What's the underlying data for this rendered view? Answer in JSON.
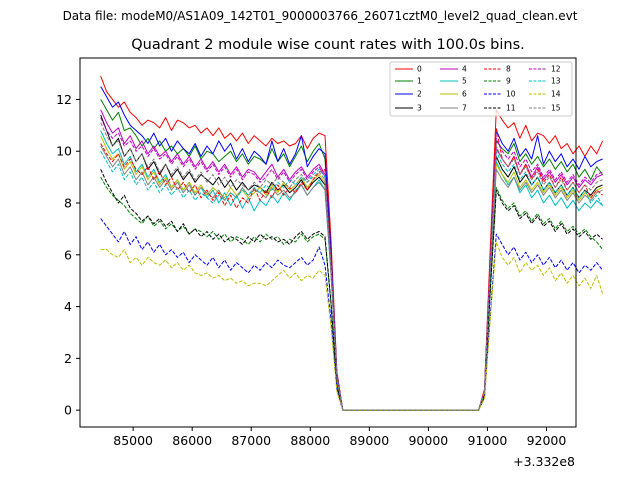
{
  "suptitle": "Data file: modeM0/AS1A09_142T01_9000003766_26071cztM0_level2_quad_clean.evt",
  "chart_data": {
    "type": "line",
    "title": "Quadrant 2 module wise count rates with 100.0s bins.",
    "xlabel": "",
    "ylabel": "",
    "x_offset_label": "+3.332e8",
    "xlim": [
      84100,
      92500
    ],
    "ylim": [
      -0.65,
      13.6
    ],
    "xticks": [
      85000,
      86000,
      87000,
      88000,
      89000,
      90000,
      91000,
      92000
    ],
    "xtick_labels": [
      "85000",
      "86000",
      "87000",
      "88000",
      "89000",
      "90000",
      "91000",
      "92000"
    ],
    "yticks": [
      0,
      2,
      4,
      6,
      8,
      10,
      12
    ],
    "ytick_labels": [
      "0",
      "2",
      "4",
      "6",
      "8",
      "10",
      "12"
    ],
    "x_start": 84450,
    "bin": 100,
    "gap_profile": [
      1.0,
      0.62,
      0.14,
      0.0,
      0.0,
      0.0,
      0.0,
      0.0,
      0.0,
      0.0,
      0.0,
      0.0,
      0.0,
      0.0,
      0.0,
      0.0,
      0.0,
      0.0,
      0.0,
      0.0,
      0.0,
      0.0,
      0.0,
      0.0,
      0.0,
      0.0,
      0.0,
      0.07,
      0.55,
      1.0
    ],
    "series": [
      {
        "name": "0",
        "color": "#ff0000",
        "dashed": false,
        "seg1": [
          12.9,
          12.3,
          12.0,
          11.7,
          11.9,
          11.5,
          11.3,
          11.0,
          11.2,
          11.1,
          10.9,
          11.3,
          10.8,
          11.2,
          11.1,
          10.9,
          11.0,
          10.7,
          10.9,
          10.6,
          10.9,
          10.5,
          10.7,
          10.4,
          10.7,
          10.3,
          10.6,
          10.4,
          10.2,
          10.5,
          10.3,
          10.4,
          10.2,
          10.3,
          10.6,
          10.1,
          10.5,
          10.7,
          10.6
        ],
        "seg2": [
          11.6,
          11.2,
          10.9,
          11.1,
          10.5,
          11.0,
          10.4,
          10.7,
          10.6,
          10.3,
          10.6,
          10.1,
          10.3,
          9.9,
          10.2,
          9.8,
          10.2,
          9.9,
          10.4
        ]
      },
      {
        "name": "1",
        "color": "#008000",
        "dashed": false,
        "seg1": [
          12.0,
          11.6,
          11.2,
          11.5,
          10.8,
          10.9,
          10.6,
          10.2,
          10.5,
          10.1,
          10.4,
          10.0,
          10.2,
          9.9,
          10.1,
          9.8,
          10.2,
          9.7,
          10.0,
          9.9,
          9.6,
          9.8,
          10.0,
          9.6,
          9.9,
          9.5,
          9.8,
          9.7,
          9.5,
          10.1,
          9.6,
          9.9,
          9.4,
          9.8,
          10.2,
          9.6,
          10.0,
          10.3,
          9.7
        ],
        "seg2": [
          10.4,
          10.1,
          9.9,
          10.3,
          9.6,
          9.9,
          9.5,
          9.8,
          9.4,
          9.7,
          9.3,
          9.6,
          9.2,
          9.5,
          9.0,
          9.3,
          8.9,
          9.4,
          9.1
        ]
      },
      {
        "name": "2",
        "color": "#0000ff",
        "dashed": false,
        "seg1": [
          12.5,
          12.1,
          11.7,
          11.9,
          11.4,
          11.0,
          10.8,
          10.6,
          10.3,
          10.7,
          10.2,
          10.5,
          10.0,
          10.4,
          10.1,
          9.9,
          10.3,
          9.8,
          10.2,
          9.9,
          10.4,
          10.0,
          10.3,
          9.7,
          10.1,
          9.6,
          10.0,
          9.8,
          9.5,
          10.4,
          9.6,
          10.1,
          9.5,
          9.9,
          10.6,
          9.4,
          9.8,
          10.1,
          9.9
        ],
        "seg2": [
          10.8,
          10.3,
          10.0,
          10.5,
          9.8,
          10.1,
          9.7,
          10.6,
          9.5,
          10.0,
          9.6,
          9.9,
          9.4,
          9.7,
          9.3,
          9.8,
          9.4,
          9.6,
          9.7
        ]
      },
      {
        "name": "3",
        "color": "#000000",
        "dashed": false,
        "seg1": [
          11.4,
          10.8,
          10.2,
          10.5,
          9.8,
          10.1,
          9.6,
          9.9,
          9.3,
          9.6,
          9.1,
          9.5,
          9.0,
          9.3,
          8.9,
          9.2,
          8.8,
          9.1,
          8.9,
          8.7,
          9.0,
          8.6,
          8.9,
          8.5,
          8.8,
          8.5,
          8.7,
          8.6,
          8.4,
          8.8,
          8.5,
          8.7,
          8.4,
          8.6,
          8.9,
          8.5,
          8.8,
          9.0,
          8.7
        ],
        "seg2": [
          9.8,
          9.3,
          9.0,
          9.4,
          8.8,
          9.1,
          8.7,
          9.0,
          8.5,
          8.8,
          8.4,
          8.7,
          8.3,
          8.6,
          8.2,
          8.5,
          8.3,
          8.6,
          8.7
        ]
      },
      {
        "name": "4",
        "color": "#bf00bf",
        "dashed": false,
        "seg1": [
          11.6,
          11.1,
          10.7,
          10.9,
          10.3,
          10.6,
          10.1,
          10.4,
          9.9,
          10.2,
          9.8,
          10.0,
          9.6,
          9.9,
          9.5,
          9.8,
          9.4,
          9.7,
          9.3,
          9.6,
          9.2,
          9.5,
          9.1,
          9.4,
          9.0,
          9.3,
          9.2,
          8.9,
          9.2,
          9.5,
          9.0,
          9.3,
          8.9,
          9.2,
          9.4,
          9.0,
          9.3,
          9.5,
          9.1
        ],
        "seg2": [
          10.1,
          9.7,
          9.4,
          9.8,
          9.1,
          9.5,
          9.0,
          9.4,
          8.9,
          9.2,
          8.8,
          9.1,
          8.7,
          9.0,
          8.6,
          8.9,
          8.7,
          9.0,
          9.1
        ]
      },
      {
        "name": "5",
        "color": "#00bfbf",
        "dashed": false,
        "seg1": [
          10.8,
          10.3,
          9.9,
          10.1,
          9.5,
          9.8,
          9.2,
          9.5,
          9.0,
          9.3,
          8.8,
          9.1,
          8.6,
          8.9,
          8.5,
          8.8,
          8.3,
          8.6,
          8.2,
          8.5,
          8.0,
          8.4,
          7.9,
          8.3,
          7.8,
          8.2,
          7.7,
          8.1,
          7.9,
          8.3,
          8.0,
          8.4,
          8.1,
          8.5,
          8.7,
          8.3,
          8.6,
          8.9,
          8.5
        ],
        "seg2": [
          9.6,
          9.1,
          8.7,
          9.0,
          8.4,
          8.7,
          8.2,
          8.5,
          8.0,
          8.3,
          7.9,
          8.2,
          7.8,
          8.1,
          7.7,
          8.0,
          7.8,
          8.1,
          7.9
        ]
      },
      {
        "name": "6",
        "color": "#bfbf00",
        "dashed": false,
        "seg1": [
          10.6,
          10.1,
          9.7,
          9.9,
          9.3,
          9.6,
          9.1,
          9.4,
          8.9,
          9.2,
          8.7,
          9.0,
          8.6,
          8.9,
          8.5,
          8.8,
          8.4,
          8.7,
          8.3,
          8.6,
          8.4,
          8.2,
          8.6,
          8.3,
          8.5,
          8.2,
          8.4,
          8.6,
          8.3,
          8.7,
          8.4,
          8.8,
          8.5,
          8.7,
          9.0,
          8.6,
          8.9,
          9.1,
          8.8
        ],
        "seg2": [
          9.5,
          9.1,
          8.8,
          9.2,
          8.6,
          8.9,
          8.5,
          8.8,
          8.4,
          8.7,
          8.3,
          8.6,
          8.2,
          8.5,
          8.1,
          8.4,
          8.2,
          8.5,
          8.6
        ]
      },
      {
        "name": "7",
        "color": "#808080",
        "dashed": false,
        "seg1": [
          10.2,
          9.8,
          9.4,
          9.7,
          9.1,
          9.4,
          8.9,
          9.2,
          8.7,
          9.0,
          8.6,
          8.9,
          8.5,
          8.8,
          8.4,
          8.7,
          8.3,
          8.6,
          8.4,
          8.2,
          8.5,
          8.1,
          8.4,
          8.2,
          8.6,
          8.3,
          8.5,
          8.4,
          8.2,
          8.6,
          8.3,
          8.5,
          8.2,
          8.4,
          8.7,
          8.3,
          8.6,
          8.8,
          8.5
        ],
        "seg2": [
          9.3,
          8.9,
          8.6,
          9.0,
          8.5,
          8.8,
          8.4,
          8.7,
          8.3,
          8.6,
          8.2,
          8.5,
          8.1,
          8.4,
          8.0,
          8.3,
          8.1,
          8.4,
          8.5
        ]
      },
      {
        "name": "8",
        "color": "#ff0000",
        "dashed": true,
        "seg1": [
          10.3,
          9.9,
          9.6,
          9.9,
          9.4,
          9.7,
          9.3,
          9.1,
          9.4,
          8.9,
          9.2,
          8.7,
          9.0,
          8.5,
          8.8,
          8.4,
          8.7,
          8.2,
          8.5,
          8.1,
          8.4,
          7.9,
          8.3,
          7.8,
          8.2,
          8.0,
          8.6,
          8.1,
          8.5,
          8.2,
          8.7,
          8.3,
          8.6,
          8.4,
          8.8,
          8.5,
          8.9,
          9.2,
          9.3
        ],
        "seg2": [
          10.9,
          9.7,
          9.4,
          9.8,
          9.1,
          9.5,
          8.9,
          9.3,
          8.8,
          9.1,
          8.6,
          9.0,
          8.5,
          8.8,
          8.4,
          8.7,
          8.2,
          8.5,
          8.3
        ]
      },
      {
        "name": "9",
        "color": "#008000",
        "dashed": true,
        "seg1": [
          9.0,
          8.6,
          8.3,
          8.1,
          7.9,
          7.6,
          7.4,
          7.2,
          7.5,
          7.1,
          7.3,
          7.0,
          7.2,
          6.9,
          7.1,
          6.8,
          7.0,
          6.9,
          6.7,
          6.9,
          6.6,
          6.8,
          6.5,
          6.7,
          6.6,
          6.4,
          6.7,
          6.5,
          6.8,
          6.6,
          6.7,
          6.4,
          6.6,
          6.5,
          6.8,
          6.5,
          6.7,
          6.8,
          6.6
        ],
        "seg2": [
          8.6,
          8.1,
          7.8,
          8.0,
          7.5,
          7.7,
          7.3,
          7.6,
          7.2,
          7.4,
          7.0,
          7.3,
          6.9,
          7.1,
          6.8,
          7.0,
          6.7,
          6.5,
          6.2
        ]
      },
      {
        "name": "10",
        "color": "#0000ff",
        "dashed": true,
        "seg1": [
          7.4,
          7.1,
          6.8,
          6.5,
          6.9,
          6.4,
          6.7,
          6.2,
          6.5,
          6.1,
          6.4,
          6.0,
          6.2,
          5.9,
          6.1,
          5.7,
          6.0,
          5.8,
          5.6,
          5.9,
          5.5,
          5.8,
          5.4,
          5.7,
          5.5,
          5.3,
          5.6,
          5.4,
          5.7,
          5.5,
          5.8,
          5.6,
          5.5,
          5.7,
          5.9,
          5.6,
          5.8,
          6.3,
          5.6
        ],
        "seg2": [
          6.8,
          6.4,
          6.0,
          6.3,
          5.8,
          6.1,
          5.7,
          6.0,
          5.6,
          5.9,
          5.5,
          5.8,
          5.4,
          5.7,
          5.3,
          5.6,
          5.4,
          5.7,
          5.4
        ]
      },
      {
        "name": "11",
        "color": "#000000",
        "dashed": true,
        "seg1": [
          9.3,
          8.8,
          8.4,
          8.0,
          8.3,
          7.8,
          7.6,
          7.3,
          7.5,
          7.2,
          7.4,
          7.1,
          7.3,
          6.9,
          7.2,
          6.8,
          7.0,
          6.7,
          6.9,
          6.6,
          6.8,
          6.5,
          6.7,
          6.6,
          6.4,
          6.7,
          6.5,
          6.8,
          6.6,
          6.7,
          6.5,
          6.6,
          6.4,
          6.7,
          6.9,
          6.6,
          6.8,
          6.9,
          6.7
        ],
        "seg2": [
          8.5,
          8.0,
          7.7,
          7.9,
          7.4,
          7.6,
          7.2,
          7.5,
          7.1,
          7.3,
          6.9,
          7.2,
          6.8,
          7.0,
          6.7,
          6.9,
          6.6,
          6.8,
          6.6
        ]
      },
      {
        "name": "12",
        "color": "#bf00bf",
        "dashed": true,
        "seg1": [
          11.3,
          10.8,
          10.5,
          10.7,
          10.2,
          10.4,
          10.0,
          10.2,
          9.8,
          10.1,
          9.7,
          9.9,
          9.5,
          9.8,
          9.4,
          9.7,
          9.3,
          9.6,
          9.2,
          9.5,
          9.1,
          9.4,
          9.0,
          9.3,
          8.9,
          9.2,
          9.1,
          8.8,
          9.0,
          9.3,
          8.9,
          9.2,
          8.8,
          9.1,
          9.3,
          8.9,
          9.2,
          9.4,
          9.0
        ],
        "seg2": [
          10.5,
          10.0,
          9.7,
          10.0,
          9.4,
          9.7,
          9.2,
          9.5,
          9.0,
          9.3,
          8.9,
          9.2,
          8.8,
          9.1,
          8.7,
          9.0,
          8.8,
          9.1,
          9.2
        ]
      },
      {
        "name": "13",
        "color": "#00bfbf",
        "dashed": true,
        "seg1": [
          10.0,
          9.6,
          9.2,
          9.5,
          8.9,
          9.2,
          8.7,
          9.0,
          8.5,
          8.8,
          8.4,
          8.7,
          8.3,
          8.6,
          8.2,
          8.5,
          8.1,
          8.4,
          8.2,
          8.0,
          8.3,
          8.1,
          8.4,
          8.2,
          8.5,
          8.3,
          8.6,
          8.4,
          8.7,
          8.5,
          8.8,
          8.6,
          8.9,
          8.7,
          9.0,
          8.8,
          9.1,
          9.3,
          9.0
        ],
        "seg2": [
          10.0,
          9.5,
          9.2,
          9.5,
          8.9,
          9.2,
          8.7,
          9.0,
          8.5,
          8.8,
          8.4,
          8.7,
          8.3,
          8.6,
          8.2,
          8.5,
          8.0,
          8.3,
          7.9
        ]
      },
      {
        "name": "14",
        "color": "#bfbf00",
        "dashed": true,
        "seg1": [
          6.2,
          6.2,
          6.0,
          5.9,
          6.2,
          5.7,
          5.9,
          5.6,
          5.9,
          5.7,
          5.6,
          5.8,
          5.5,
          5.7,
          5.4,
          5.6,
          5.3,
          5.2,
          5.3,
          5.1,
          5.2,
          5.0,
          5.1,
          4.9,
          5.0,
          4.8,
          4.9,
          4.9,
          4.8,
          5.0,
          5.2,
          5.4,
          5.1,
          5.3,
          5.0,
          5.2,
          5.1,
          5.4,
          5.2
        ],
        "seg2": [
          6.5,
          5.9,
          5.6,
          5.9,
          5.3,
          5.7,
          5.4,
          5.6,
          5.2,
          5.5,
          5.0,
          5.3,
          4.9,
          5.2,
          4.8,
          5.1,
          4.7,
          5.2,
          4.5
        ]
      },
      {
        "name": "15",
        "color": "#808080",
        "dashed": true,
        "seg1": [
          11.1,
          10.6,
          10.2,
          10.4,
          9.8,
          10.1,
          9.6,
          9.9,
          9.4,
          9.7,
          9.2,
          9.5,
          9.1,
          9.4,
          9.0,
          9.3,
          8.9,
          9.2,
          8.8,
          9.1,
          8.7,
          9.0,
          8.6,
          8.9,
          8.7,
          8.5,
          8.8,
          8.6,
          8.9,
          8.7,
          9.0,
          8.8,
          8.6,
          8.9,
          9.1,
          8.8,
          9.0,
          9.2,
          8.9
        ],
        "seg2": [
          10.2,
          9.7,
          9.4,
          9.7,
          9.1,
          9.4,
          8.9,
          9.2,
          8.7,
          9.0,
          8.6,
          8.9,
          8.5,
          8.8,
          8.4,
          8.7,
          8.5,
          8.8,
          8.9
        ]
      }
    ]
  }
}
